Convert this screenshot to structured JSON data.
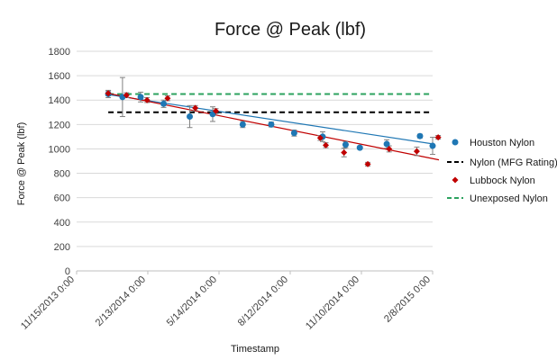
{
  "chart_data": {
    "type": "scatter",
    "title": "Force @ Peak (lbf)",
    "xlabel": "Timestamp",
    "ylabel": "Force @ Peak (lbf)",
    "ylim": [
      0,
      1800
    ],
    "yticks": [
      0,
      200,
      400,
      600,
      800,
      1000,
      1200,
      1400,
      1600,
      1800
    ],
    "xlim": [
      "11/15/2013 0:00",
      "2/8/2015 0:00"
    ],
    "xticks": [
      "11/15/2013 0:00",
      "2/13/2014 0:00",
      "5/14/2014 0:00",
      "8/12/2014 0:00",
      "11/10/2014 0:00",
      "2/8/2015 0:00"
    ],
    "x_unit": "days since 11/15/2013",
    "xtick_days": [
      0,
      90,
      180,
      270,
      360,
      450
    ],
    "grid": "horizontal",
    "legend_position": "right",
    "legend": [
      "Houston Nylon",
      "Nylon (MFG Rating)",
      "Lubbock Nylon",
      "Unexposed Nylon"
    ],
    "series": [
      {
        "name": "Houston Nylon",
        "marker": "circle",
        "color": "#1f77b4",
        "trendline": [
          1445,
          1040
        ],
        "points": [
          {
            "x": 40,
            "y": 1450,
            "err": 30
          },
          {
            "x": 58,
            "y": 1425,
            "err": 160
          },
          {
            "x": 81,
            "y": 1425,
            "err": 40
          },
          {
            "x": 110,
            "y": 1370,
            "err": 30
          },
          {
            "x": 143,
            "y": 1265,
            "err": 90
          },
          {
            "x": 172,
            "y": 1285,
            "err": 60
          },
          {
            "x": 210,
            "y": 1200,
            "err": 25
          },
          {
            "x": 246,
            "y": 1200,
            "err": 20
          },
          {
            "x": 275,
            "y": 1130,
            "err": 25
          },
          {
            "x": 311,
            "y": 1100,
            "err": 40
          },
          {
            "x": 340,
            "y": 1035,
            "err": 25
          },
          {
            "x": 358,
            "y": 1010,
            "err": 10
          },
          {
            "x": 392,
            "y": 1040,
            "err": 35
          },
          {
            "x": 434,
            "y": 1105,
            "err": 15
          },
          {
            "x": 450,
            "y": 1025,
            "err": 70
          }
        ]
      },
      {
        "name": "Lubbock Nylon",
        "marker": "diamond",
        "color": "#c00000",
        "trendline": [
          1455,
          910
        ],
        "points": [
          {
            "x": 40,
            "y": 1455,
            "err": 20
          },
          {
            "x": 63,
            "y": 1440,
            "err": 20
          },
          {
            "x": 89,
            "y": 1400,
            "err": 20
          },
          {
            "x": 115,
            "y": 1415,
            "err": 20
          },
          {
            "x": 150,
            "y": 1335,
            "err": 20
          },
          {
            "x": 176,
            "y": 1310,
            "err": 20
          },
          {
            "x": 308,
            "y": 1090,
            "err": 20
          },
          {
            "x": 315,
            "y": 1030,
            "err": 20
          },
          {
            "x": 338,
            "y": 970,
            "err": 35
          },
          {
            "x": 368,
            "y": 875,
            "err": 15
          },
          {
            "x": 395,
            "y": 1000,
            "err": 25
          },
          {
            "x": 430,
            "y": 980,
            "err": 35
          },
          {
            "x": 457,
            "y": 1095,
            "err": 15
          }
        ]
      },
      {
        "name": "Nylon (MFG Rating)",
        "line_style": "dashed",
        "color": "#000000",
        "constant": 1300,
        "x_range": [
          40,
          450
        ]
      },
      {
        "name": "Unexposed Nylon",
        "line_style": "dashed",
        "color": "#2ca25f",
        "constant": 1450,
        "x_range": [
          40,
          450
        ]
      }
    ]
  }
}
